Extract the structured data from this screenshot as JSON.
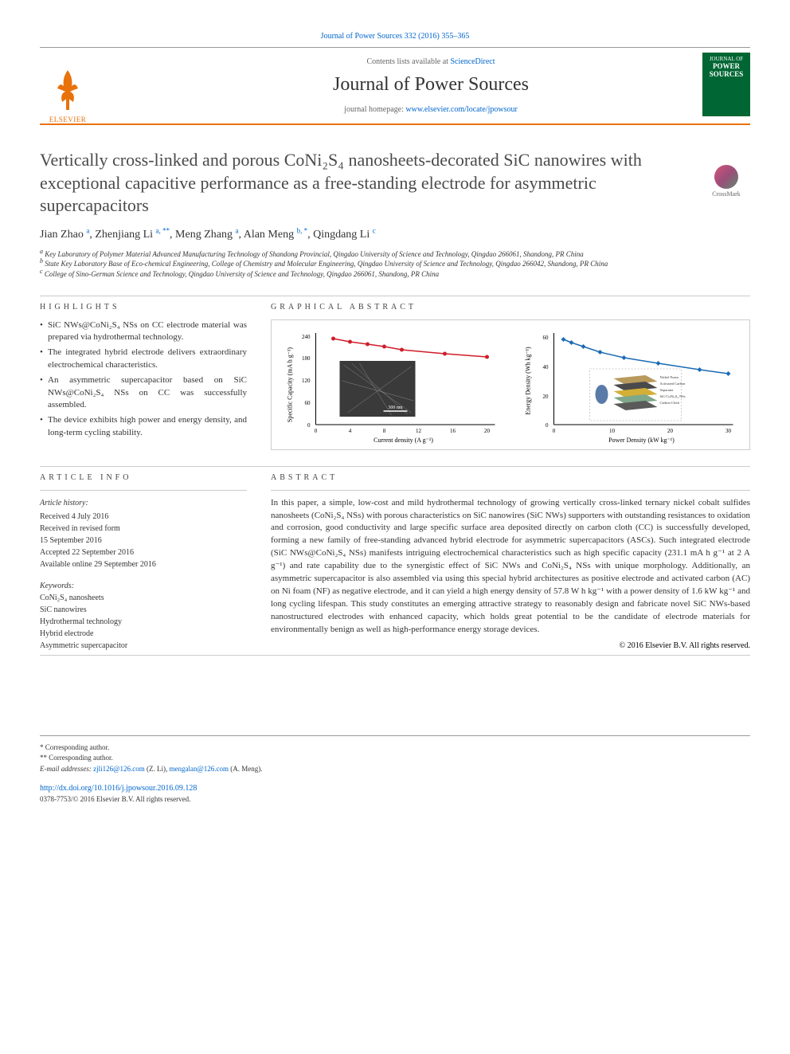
{
  "journal_ref": "Journal of Power Sources 332 (2016) 355–365",
  "header": {
    "contents_prefix": "Contents lists available at ",
    "contents_link": "ScienceDirect",
    "journal_name": "Journal of Power Sources",
    "homepage_prefix": "journal homepage: ",
    "homepage_link": "www.elsevier.com/locate/jpowsour",
    "publisher": "ELSEVIER",
    "cover_label_top": "JOURNAL OF",
    "cover_label_main": "POWER SOURCES"
  },
  "crossmark_label": "CrossMark",
  "title": "Vertically cross-linked and porous CoNi₂S₄ nanosheets-decorated SiC nanowires with exceptional capacitive performance as a free-standing electrode for asymmetric supercapacitors",
  "authors": [
    {
      "name": "Jian Zhao",
      "aff": "a"
    },
    {
      "name": "Zhenjiang Li",
      "aff": "a, **"
    },
    {
      "name": "Meng Zhang",
      "aff": "a"
    },
    {
      "name": "Alan Meng",
      "aff": "b, *"
    },
    {
      "name": "Qingdang Li",
      "aff": "c"
    }
  ],
  "affiliations": [
    {
      "sup": "a",
      "text": "Key Laboratory of Polymer Material Advanced Manufacturing Technology of Shandong Provincial, Qingdao University of Science and Technology, Qingdao 266061, Shandong, PR China"
    },
    {
      "sup": "b",
      "text": "State Key Laboratory Base of Eco-chemical Engineering, College of Chemistry and Molecular Engineering, Qingdao University of Science and Technology, Qingdao 266042, Shandong, PR China"
    },
    {
      "sup": "c",
      "text": "College of Sino-German Science and Technology, Qingdao University of Science and Technology, Qingdao 266061, Shandong, PR China"
    }
  ],
  "highlights_header": "HIGHLIGHTS",
  "highlights": [
    "SiC NWs@CoNi₂S₄ NSs on CC electrode material was prepared via hydrothermal technology.",
    "The integrated hybrid electrode delivers extraordinary electrochemical characteristics.",
    "An asymmetric supercapacitor based on SiC NWs@CoNi₂S₄ NSs on CC was successfully assembled.",
    "The device exhibits high power and energy density, and long-term cycling stability."
  ],
  "graphical_header": "GRAPHICAL ABSTRACT",
  "graphical_abstract": {
    "left_chart": {
      "type": "line",
      "xlabel": "Current density (A g⁻¹)",
      "ylabel": "Specific Capacity (mA h g⁻¹)",
      "x_ticks": [
        0,
        4,
        8,
        12,
        16,
        20
      ],
      "y_ticks": [
        0,
        60,
        120,
        180,
        240
      ],
      "xlim": [
        0,
        22
      ],
      "ylim": [
        0,
        260
      ],
      "data_x": [
        2,
        4,
        6,
        8,
        10,
        15,
        20
      ],
      "data_y": [
        231,
        222,
        215,
        208,
        200,
        190,
        180
      ],
      "line_color": "#d01c2a",
      "marker_color": "#d01c2a",
      "marker": "circle",
      "background": "#ffffff",
      "axis_color": "#000000",
      "label_fontsize": 8,
      "tick_fontsize": 7,
      "inset_image": {
        "scale_bar": "300 nm",
        "bg": "#3a3a3a"
      }
    },
    "right_chart": {
      "type": "line",
      "xlabel": "Power Density (kW kg⁻¹)",
      "ylabel": "Energy Density (Wh kg⁻¹)",
      "x_ticks": [
        0,
        10,
        20,
        30
      ],
      "y_ticks": [
        0,
        20,
        40,
        60
      ],
      "xlim": [
        0,
        32
      ],
      "ylim": [
        0,
        65
      ],
      "data_x": [
        1.6,
        3,
        5,
        8,
        12,
        18,
        25,
        30
      ],
      "data_y": [
        57.8,
        55,
        52,
        48,
        44,
        40,
        36,
        33
      ],
      "line_color": "#1a6bb5",
      "marker_color": "#1a6bb5",
      "marker": "diamond",
      "background": "#ffffff",
      "axis_color": "#000000",
      "label_fontsize": 8,
      "tick_fontsize": 7,
      "inset_diagram": {
        "layers": [
          {
            "label": "Nickel Foam",
            "color": "#b89a5c"
          },
          {
            "label": "Activated Carbon",
            "color": "#4a4a4a"
          },
          {
            "label": "Separator",
            "color": "#d4af37"
          },
          {
            "label": "SiC/CoNi₂S₄ NSs",
            "color": "#7fa88a"
          },
          {
            "label": "Carbon Cloth",
            "color": "#5a5a5a"
          }
        ]
      }
    }
  },
  "article_info_header": "ARTICLE INFO",
  "article_history_label": "Article history:",
  "article_history": [
    "Received 4 July 2016",
    "Received in revised form",
    "15 September 2016",
    "Accepted 22 September 2016",
    "Available online 29 September 2016"
  ],
  "keywords_label": "Keywords:",
  "keywords": [
    "CoNi₂S₄ nanosheets",
    "SiC nanowires",
    "Hydrothermal technology",
    "Hybrid electrode",
    "Asymmetric supercapacitor"
  ],
  "abstract_header": "ABSTRACT",
  "abstract": "In this paper, a simple, low-cost and mild hydrothermal technology of growing vertically cross-linked ternary nickel cobalt sulfides nanosheets (CoNi₂S₄ NSs) with porous characteristics on SiC nanowires (SiC NWs) supporters with outstanding resistances to oxidation and corrosion, good conductivity and large specific surface area deposited directly on carbon cloth (CC) is successfully developed, forming a new family of free-standing advanced hybrid electrode for asymmetric supercapacitors (ASCs). Such integrated electrode (SiC NWs@CoNi₂S₄ NSs) manifests intriguing electrochemical characteristics such as high specific capacity (231.1 mA h g⁻¹ at 2 A g⁻¹) and rate capability due to the synergistic effect of SiC NWs and CoNi₂S₄ NSs with unique morphology. Additionally, an asymmetric supercapacitor is also assembled via using this special hybrid architectures as positive electrode and activated carbon (AC) on Ni foam (NF) as negative electrode, and it can yield a high energy density of 57.8 W h kg⁻¹ with a power density of 1.6 kW kg⁻¹ and long cycling lifespan. This study constitutes an emerging attractive strategy to reasonably design and fabricate novel SiC NWs-based nanostructured electrodes with enhanced capacity, which holds great potential to be the candidate of electrode materials for environmentally benign as well as high-performance energy storage devices.",
  "copyright": "© 2016 Elsevier B.V. All rights reserved.",
  "footer": {
    "corr1": "* Corresponding author.",
    "corr2": "** Corresponding author.",
    "email_label": "E-mail addresses: ",
    "emails": [
      {
        "addr": "zjli126@126.com",
        "name": "(Z. Li)"
      },
      {
        "addr": "mengalan@126.com",
        "name": "(A. Meng)"
      }
    ],
    "doi": "http://dx.doi.org/10.1016/j.jpowsour.2016.09.128",
    "issn": "0378-7753/© 2016 Elsevier B.V. All rights reserved."
  },
  "colors": {
    "link": "#0066cc",
    "accent": "#e8720c",
    "text": "#333333",
    "border": "#cccccc"
  }
}
